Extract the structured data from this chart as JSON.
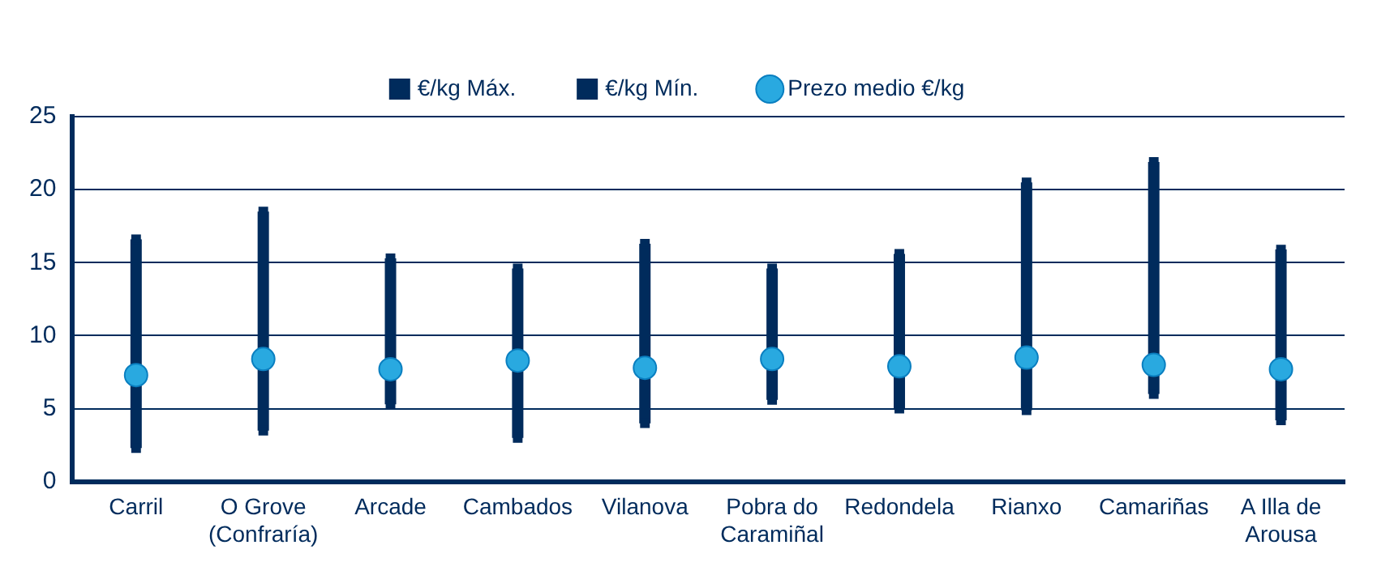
{
  "chart_data": {
    "type": "scatter",
    "categories": [
      "Carril",
      "O Grove\n(Confraría)",
      "Arcade",
      "Cambados",
      "Vilanova",
      "Pobra do\nCaramiñal",
      "Redondela",
      "Rianxo",
      "Camariñas",
      "A Illa de\nArousa"
    ],
    "series": [
      {
        "name": "€/kg Máx.",
        "color": "#002b5c",
        "marker": "square",
        "values": [
          16.6,
          18.5,
          15.3,
          14.6,
          16.3,
          14.6,
          15.6,
          20.5,
          21.9,
          15.9
        ]
      },
      {
        "name": "€/kg Mín.",
        "color": "#002b5c",
        "marker": "square",
        "values": [
          2.3,
          3.5,
          5.3,
          3.0,
          4.0,
          5.6,
          5.0,
          4.9,
          6.0,
          4.2
        ]
      },
      {
        "name": "Prezo medio €/kg",
        "color": "#29a9e0",
        "marker": "circle",
        "values": [
          7.3,
          8.4,
          7.7,
          8.3,
          7.8,
          8.4,
          7.9,
          8.5,
          8.0,
          7.7
        ]
      }
    ],
    "ylim": [
      0,
      25
    ],
    "yticks": [
      0,
      5,
      10,
      15,
      20,
      25
    ],
    "grid": "y",
    "legend": "top"
  }
}
